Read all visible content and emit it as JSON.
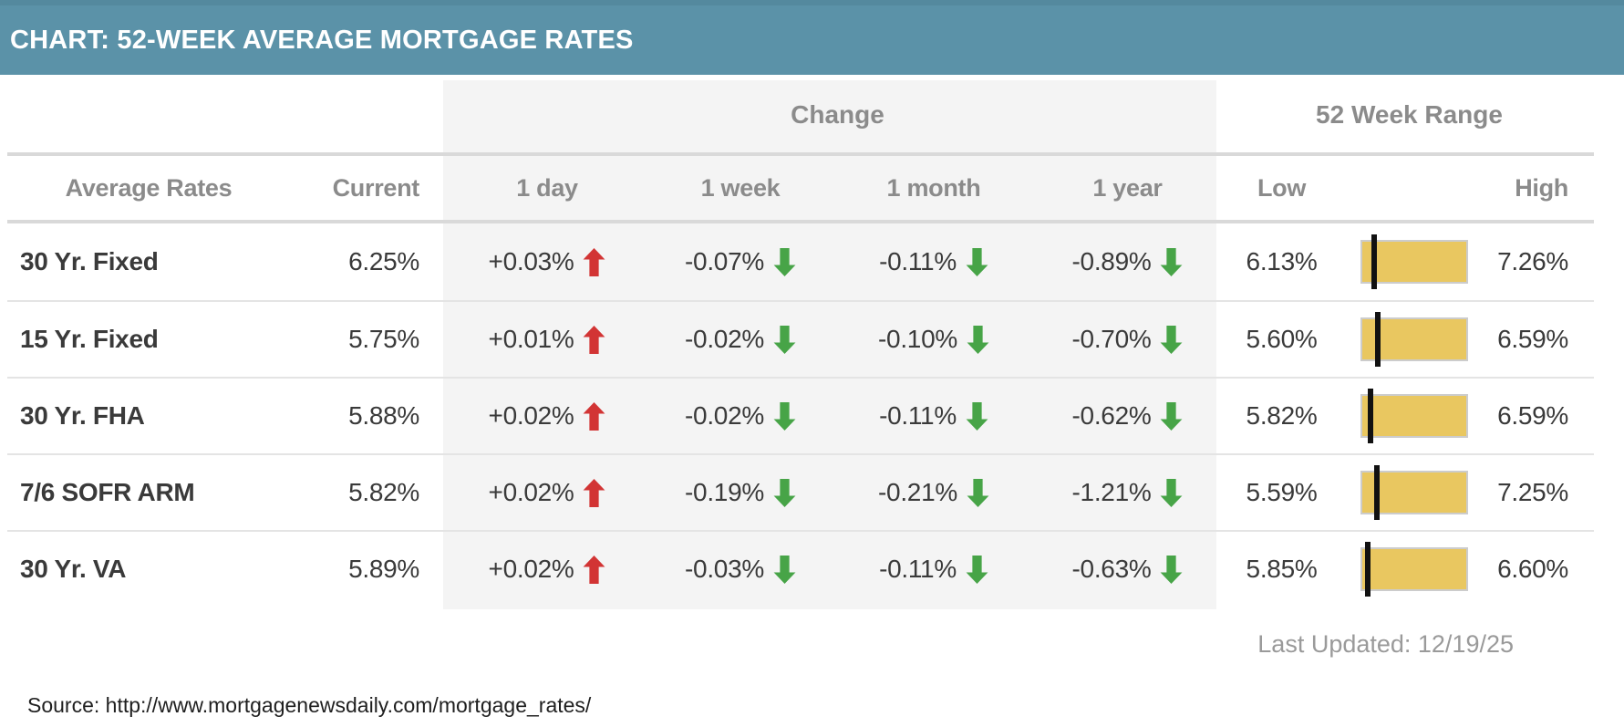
{
  "header": {
    "title": "CHART: 52-WEEK AVERAGE MORTGAGE RATES"
  },
  "table": {
    "group_headers": {
      "change": "Change",
      "range": "52 Week Range"
    },
    "column_headers": {
      "rates": "Average Rates",
      "current": "Current",
      "one_day": "1 day",
      "one_week": "1 week",
      "one_month": "1 month",
      "one_year": "1 year",
      "low": "Low",
      "high": "High"
    },
    "rows": [
      {
        "label": "30 Yr. Fixed",
        "current": "6.25%",
        "one_day": "+0.03%",
        "one_day_dir": "up",
        "one_week": "-0.07%",
        "one_week_dir": "down",
        "one_month": "-0.11%",
        "one_month_dir": "down",
        "one_year": "-0.89%",
        "one_year_dir": "down",
        "low": "6.13%",
        "high": "7.26%",
        "marker_pct": 11
      },
      {
        "label": "15 Yr. Fixed",
        "current": "5.75%",
        "one_day": "+0.01%",
        "one_day_dir": "up",
        "one_week": "-0.02%",
        "one_week_dir": "down",
        "one_month": "-0.10%",
        "one_month_dir": "down",
        "one_year": "-0.70%",
        "one_year_dir": "down",
        "low": "5.60%",
        "high": "6.59%",
        "marker_pct": 15
      },
      {
        "label": "30 Yr. FHA",
        "current": "5.88%",
        "one_day": "+0.02%",
        "one_day_dir": "up",
        "one_week": "-0.02%",
        "one_week_dir": "down",
        "one_month": "-0.11%",
        "one_month_dir": "down",
        "one_year": "-0.62%",
        "one_year_dir": "down",
        "low": "5.82%",
        "high": "6.59%",
        "marker_pct": 8
      },
      {
        "label": "7/6 SOFR ARM",
        "current": "5.82%",
        "one_day": "+0.02%",
        "one_day_dir": "up",
        "one_week": "-0.19%",
        "one_week_dir": "down",
        "one_month": "-0.21%",
        "one_month_dir": "down",
        "one_year": "-1.21%",
        "one_year_dir": "down",
        "low": "5.59%",
        "high": "7.25%",
        "marker_pct": 14
      },
      {
        "label": "30 Yr. VA",
        "current": "5.89%",
        "one_day": "+0.02%",
        "one_day_dir": "up",
        "one_week": "-0.03%",
        "one_week_dir": "down",
        "one_month": "-0.11%",
        "one_month_dir": "down",
        "one_year": "-0.63%",
        "one_year_dir": "down",
        "low": "5.85%",
        "high": "6.60%",
        "marker_pct": 5
      }
    ]
  },
  "footer": {
    "last_updated": "Last Updated: 12/19/25",
    "source": "Source: http://www.mortgagenewsdaily.com/mortgage_rates/"
  },
  "icons": {
    "up_arrow": "thick-up-arrow",
    "down_arrow": "thick-down-arrow"
  },
  "colors": {
    "titlebar_bg": "#5b92a8",
    "titlebar_top_edge": "#54899e",
    "change_band_bg": "#f4f4f4",
    "up_arrow": "#d23434",
    "down_arrow": "#47a447",
    "range_bar_fill": "#e9c760",
    "range_bar_border": "#cccccc",
    "range_marker": "#111111"
  },
  "chart_data": {
    "type": "table",
    "title": "CHART: 52-WEEK AVERAGE MORTGAGE RATES",
    "columns": [
      "Average Rates",
      "Current",
      "Change 1 day",
      "Change 1 week",
      "Change 1 month",
      "Change 1 year",
      "52 Week Low",
      "52 Week High"
    ],
    "rows": [
      {
        "product": "30 Yr. Fixed",
        "current": 6.25,
        "change_1day": 0.03,
        "change_1week": -0.07,
        "change_1month": -0.11,
        "change_1year": -0.89,
        "low_52wk": 6.13,
        "high_52wk": 7.26
      },
      {
        "product": "15 Yr. Fixed",
        "current": 5.75,
        "change_1day": 0.01,
        "change_1week": -0.02,
        "change_1month": -0.1,
        "change_1year": -0.7,
        "low_52wk": 5.6,
        "high_52wk": 6.59
      },
      {
        "product": "30 Yr. FHA",
        "current": 5.88,
        "change_1day": 0.02,
        "change_1week": -0.02,
        "change_1month": -0.11,
        "change_1year": -0.62,
        "low_52wk": 5.82,
        "high_52wk": 6.59
      },
      {
        "product": "7/6 SOFR ARM",
        "current": 5.82,
        "change_1day": 0.02,
        "change_1week": -0.19,
        "change_1month": -0.21,
        "change_1year": -1.21,
        "low_52wk": 5.59,
        "high_52wk": 7.25
      },
      {
        "product": "30 Yr. VA",
        "current": 5.89,
        "change_1day": 0.02,
        "change_1week": -0.03,
        "change_1month": -0.11,
        "change_1year": -0.63,
        "low_52wk": 5.85,
        "high_52wk": 6.6
      }
    ],
    "notes": "Range bars show position of current rate (black marker) between 52-week low and high; red up arrows = rate increase, green down arrows = rate decrease",
    "last_updated": "12/19/25",
    "source": "http://www.mortgagenewsdaily.com/mortgage_rates/"
  }
}
